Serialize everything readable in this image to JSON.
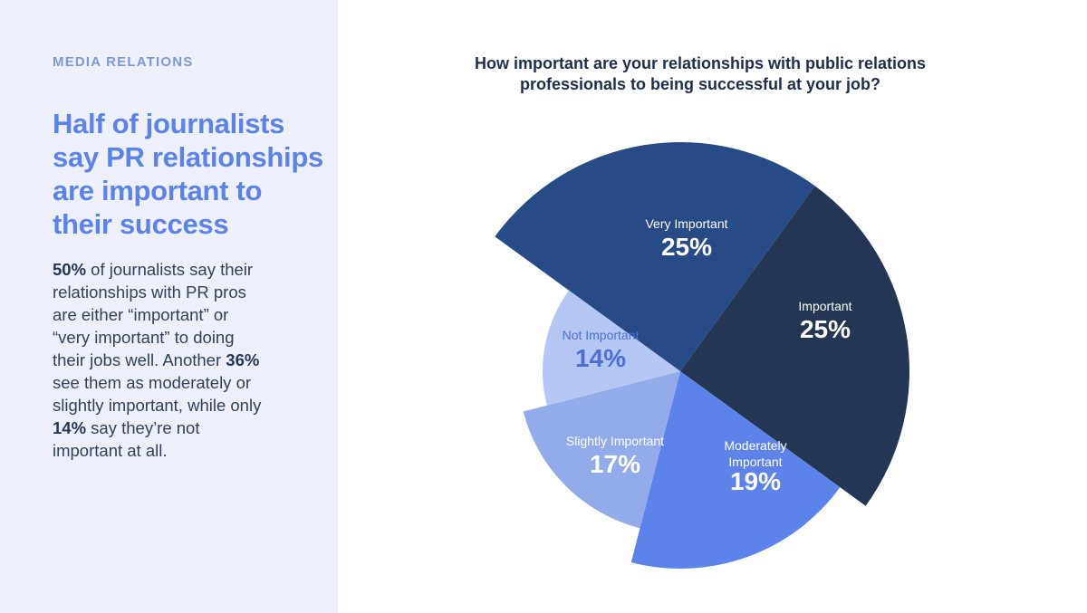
{
  "sidebar": {
    "eyebrow": "MEDIA RELATIONS",
    "headline": "Half of journalists say PR relationships are important to their success",
    "body": {
      "stat1": "50%",
      "text1": " of journalists say their relationships with PR pros are either “important” or “very important” to doing their jobs well. Another ",
      "stat2": "36%",
      "text2": " see them as moderately or slightly important, while only ",
      "stat3": "14%",
      "text3": " say they’re not important at all."
    }
  },
  "chart_data": {
    "type": "pie",
    "variant": "rose (variable radius)",
    "title": "How important are your relationships with public relations professionals to being successful at your job?",
    "slices": [
      {
        "name": "Very Important",
        "value": 25,
        "label": "25%",
        "color": "#274b86",
        "text_color": "#ffffff"
      },
      {
        "name": "Important",
        "value": 25,
        "label": "25%",
        "color": "#243654",
        "text_color": "#ffffff"
      },
      {
        "name": "Moderately Important",
        "value": 19,
        "label": "19%",
        "color": "#5b83ea",
        "text_color": "#ffffff"
      },
      {
        "name": "Slightly Important",
        "value": 17,
        "label": "17%",
        "color": "#94abeb",
        "text_color": "#ffffff"
      },
      {
        "name": "Not Important",
        "value": 14,
        "label": "14%",
        "color": "#b6c7f6",
        "text_color": "#4a6fd6"
      }
    ]
  }
}
